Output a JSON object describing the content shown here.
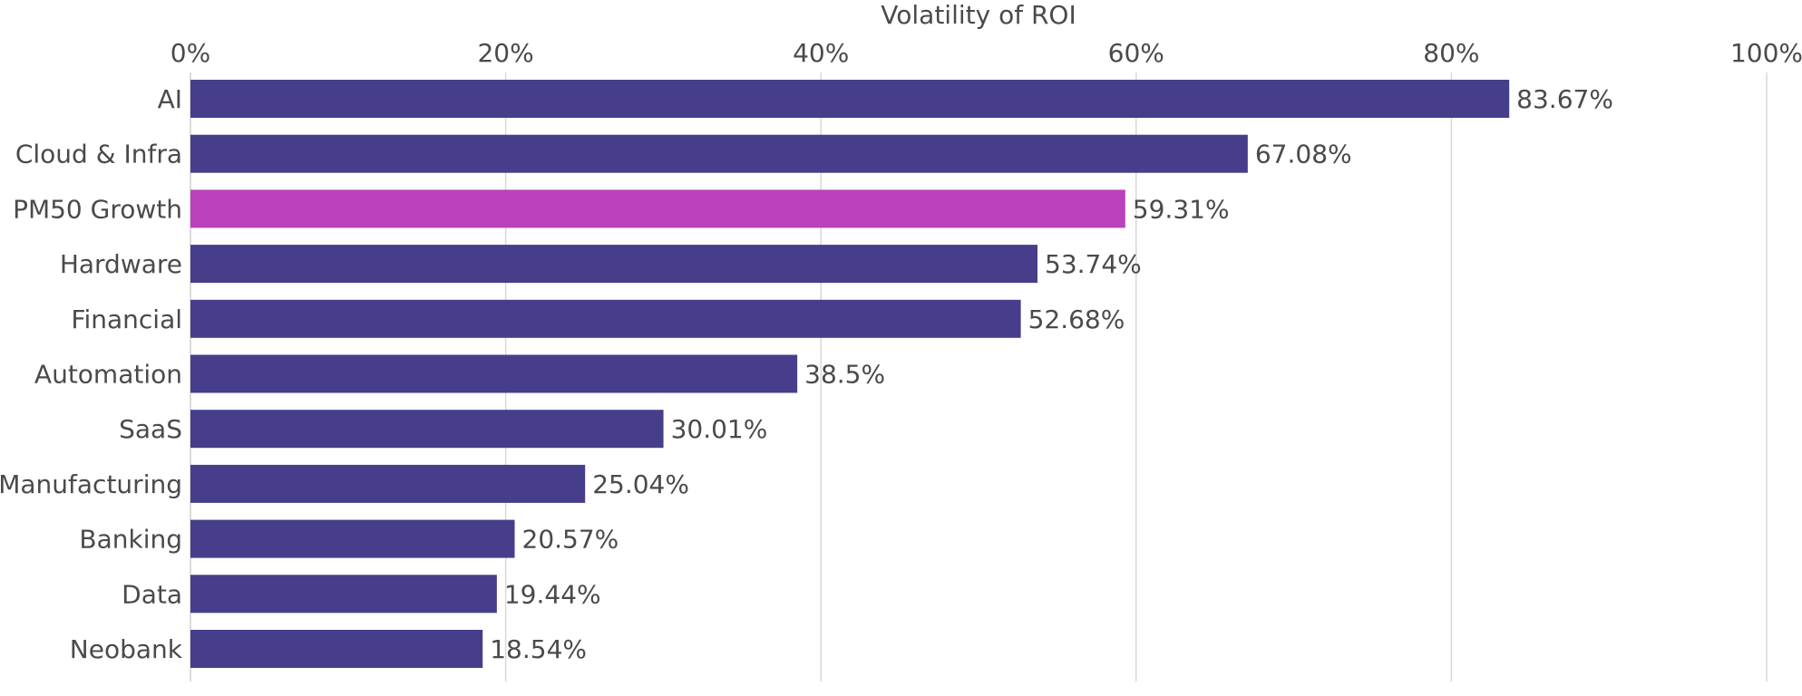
{
  "chart_data": {
    "type": "bar",
    "orientation": "horizontal",
    "title": "",
    "xlabel": "Volatility of ROI",
    "ylabel": "",
    "xlim": [
      0,
      100
    ],
    "x_ticks": [
      "0%",
      "20%",
      "40%",
      "60%",
      "80%",
      "100%"
    ],
    "x_tick_values": [
      0,
      20,
      40,
      60,
      80,
      100
    ],
    "grid": true,
    "categories": [
      "AI",
      "Cloud & Infra",
      "PM50 Growth",
      "Hardware",
      "Financial",
      "Automation",
      "SaaS",
      "Manufacturing",
      "Banking",
      "Data",
      "Neobank"
    ],
    "values": [
      83.67,
      67.08,
      59.31,
      53.74,
      52.68,
      38.5,
      30.01,
      25.04,
      20.57,
      19.44,
      18.54
    ],
    "value_labels": [
      "83.67%",
      "67.08%",
      "59.31%",
      "53.74%",
      "52.68%",
      "38.5%",
      "30.01%",
      "25.04%",
      "20.57%",
      "19.44%",
      "18.54%"
    ],
    "bar_colors": [
      "#463e8a",
      "#463e8a",
      "#bb40bb",
      "#463e8a",
      "#463e8a",
      "#463e8a",
      "#463e8a",
      "#463e8a",
      "#463e8a",
      "#463e8a",
      "#463e8a"
    ],
    "default_color": "#463e8a",
    "highlight_color": "#bb40bb",
    "highlight_category": "PM50 Growth"
  }
}
